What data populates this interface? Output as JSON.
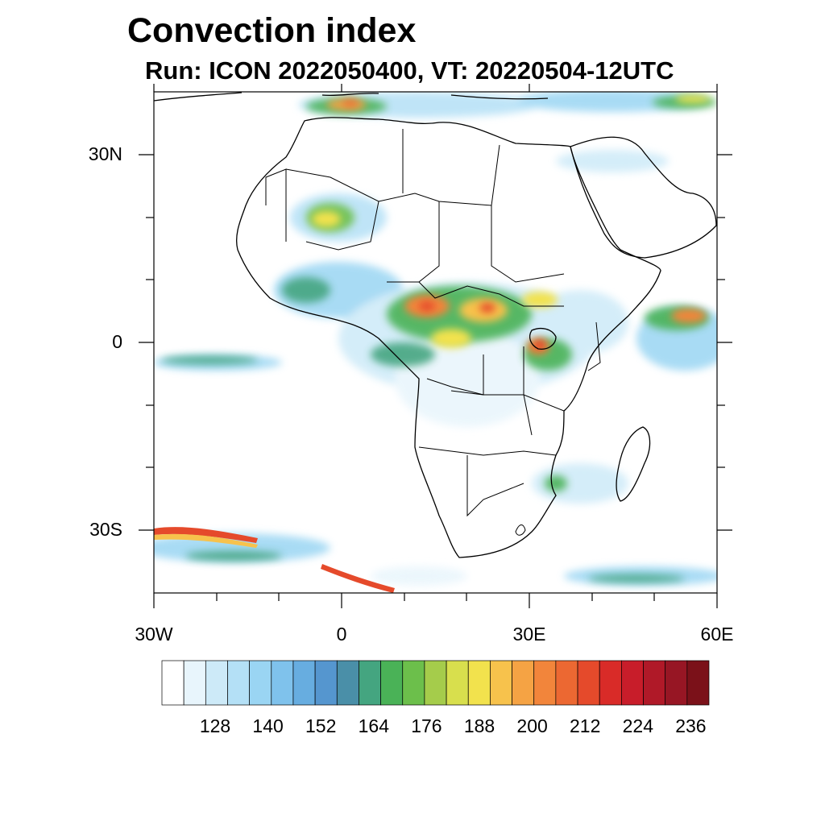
{
  "title": "Convection index",
  "subtitle": "Run: ICON 2022050400,  VT: 20220504-12UTC",
  "map": {
    "extent": {
      "lon": [
        -30,
        60
      ],
      "lat": [
        -40,
        40
      ]
    },
    "lat_labels": [
      {
        "text": "30N",
        "lat": 30
      },
      {
        "text": "0",
        "lat": 0
      },
      {
        "text": "30S",
        "lat": -30
      }
    ],
    "lon_labels": [
      {
        "text": "30W",
        "lon": -30
      },
      {
        "text": "0",
        "lon": 0
      },
      {
        "text": "30E",
        "lon": 30
      },
      {
        "text": "60E",
        "lon": 60
      }
    ],
    "region": "Africa",
    "regions_of_high_index": [
      "Central Africa (Congo basin)",
      "Lake Victoria region",
      "Western Sahara band",
      "Mediterranean coast",
      "Indian Ocean east of Somalia",
      "Southern Ocean front"
    ]
  },
  "colorbar": {
    "tick_labels": [
      "128",
      "140",
      "152",
      "164",
      "176",
      "188",
      "200",
      "212",
      "224",
      "236"
    ],
    "colors": [
      "#ffffff",
      "#e8f5fc",
      "#cdeaf8",
      "#b4e0f6",
      "#9ad5f3",
      "#7fc2ec",
      "#67ade0",
      "#5596cf",
      "#4a8fa8",
      "#44a580",
      "#4ab257",
      "#6cbf4b",
      "#a5cc4b",
      "#d8df4d",
      "#f2e24d",
      "#f7c24c",
      "#f5a344",
      "#f2853b",
      "#ec6832",
      "#e54a2b",
      "#d92b28",
      "#c81d2a",
      "#b01928",
      "#971624",
      "#7b1119"
    ]
  }
}
